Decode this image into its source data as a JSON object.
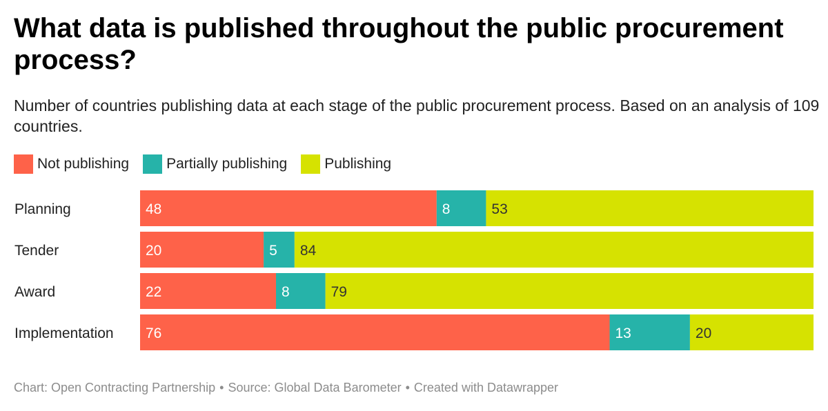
{
  "title": "What data is published throughout the public procurement process?",
  "subtitle": "Number of countries publishing data at each stage of the public procurement process. Based on an analysis of 109 countries.",
  "legend": [
    {
      "label": "Not publishing",
      "color": "#fe6249"
    },
    {
      "label": "Partially publishing",
      "color": "#26b3a9"
    },
    {
      "label": "Publishing",
      "color": "#d6e201"
    }
  ],
  "chart_data": {
    "type": "bar",
    "orientation": "horizontal",
    "stacked": true,
    "categories": [
      "Planning",
      "Tender",
      "Award",
      "Implementation"
    ],
    "series": [
      {
        "name": "Not publishing",
        "values": [
          48,
          20,
          22,
          76
        ],
        "color": "#fe6249",
        "label_color": "#ffffff"
      },
      {
        "name": "Partially publishing",
        "values": [
          8,
          5,
          8,
          13
        ],
        "color": "#26b3a9",
        "label_color": "#ffffff"
      },
      {
        "name": "Publishing",
        "values": [
          53,
          84,
          79,
          20
        ],
        "color": "#d6e201",
        "label_color": "#333333"
      }
    ],
    "xlim": [
      0,
      109
    ]
  },
  "source": {
    "chart": "Chart: Open Contracting Partnership",
    "source": "Source: Global Data Barometer",
    "created": "Created with Datawrapper",
    "separator": "•"
  }
}
